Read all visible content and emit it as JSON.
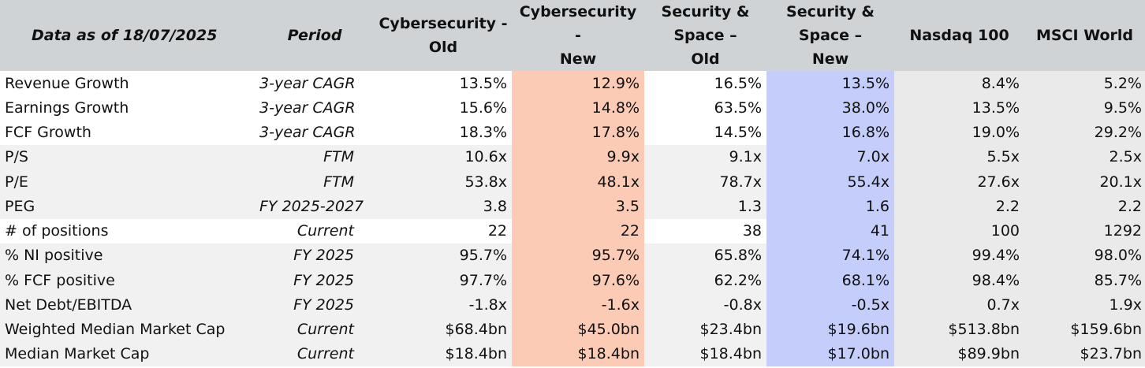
{
  "header": {
    "date_label": "Data as of 18/07/2025",
    "period_label": "Period",
    "cols": [
      {
        "line1": "Cybersecurity -",
        "line2": "Old",
        "line3": ""
      },
      {
        "line1": "Cybersecurity -",
        "line2": "New",
        "line3": ""
      },
      {
        "line1": "Security &",
        "line2": "Space –",
        "line3": "Old"
      },
      {
        "line1": "Security &",
        "line2": "Space –",
        "line3": "New"
      },
      {
        "line1": "Nasdaq 100",
        "line2": "",
        "line3": ""
      },
      {
        "line1": "MSCI World",
        "line2": "",
        "line3": ""
      }
    ]
  },
  "colors": {
    "header_bg": "#d0d3d6",
    "highlight_orange": "#fccbb6",
    "highlight_blue": "#c5cdfb",
    "index_bg": "#eaeaea",
    "shade_bg": "#f1f1f1"
  },
  "rows": [
    {
      "metric": "Revenue Growth",
      "period": "3-year CAGR",
      "values": [
        "13.5%",
        "12.9%",
        "16.5%",
        "13.5%",
        "8.4%",
        "5.2%"
      ]
    },
    {
      "metric": "Earnings Growth",
      "period": "3-year CAGR",
      "values": [
        "15.6%",
        "14.8%",
        "63.5%",
        "38.0%",
        "13.5%",
        "9.5%"
      ]
    },
    {
      "metric": "FCF Growth",
      "period": "3-year CAGR",
      "values": [
        "18.3%",
        "17.8%",
        "14.5%",
        "16.8%",
        "19.0%",
        "29.2%"
      ]
    },
    {
      "metric": "P/S",
      "period": "FTM",
      "values": [
        "10.6x",
        "9.9x",
        "9.1x",
        "7.0x",
        "5.5x",
        "2.5x"
      ]
    },
    {
      "metric": "P/E",
      "period": "FTM",
      "values": [
        "53.8x",
        "48.1x",
        "78.7x",
        "55.4x",
        "27.6x",
        "20.1x"
      ]
    },
    {
      "metric": "PEG",
      "period": "FY 2025-2027",
      "values": [
        "3.8",
        "3.5",
        "1.3",
        "1.6",
        "2.2",
        "2.2"
      ]
    },
    {
      "metric": "# of positions",
      "period": "Current",
      "values": [
        "22",
        "22",
        "38",
        "41",
        "100",
        "1292"
      ]
    },
    {
      "metric": "% NI positive",
      "period": "FY 2025",
      "values": [
        "95.7%",
        "95.7%",
        "65.8%",
        "74.1%",
        "99.4%",
        "98.0%"
      ]
    },
    {
      "metric": "% FCF positive",
      "period": "FY 2025",
      "values": [
        "97.7%",
        "97.6%",
        "62.2%",
        "68.1%",
        "98.4%",
        "85.7%"
      ]
    },
    {
      "metric": "Net Debt/EBITDA",
      "period": "FY 2025",
      "values": [
        "-1.8x",
        "-1.6x",
        "-0.8x",
        "-0.5x",
        "0.7x",
        "1.9x"
      ]
    },
    {
      "metric": "Weighted Median Market Cap",
      "period": "Current",
      "values": [
        "$68.4bn",
        "$45.0bn",
        "$23.4bn",
        "$19.6bn",
        "$513.8bn",
        "$159.6bn"
      ]
    },
    {
      "metric": "Median Market Cap",
      "period": "Current",
      "values": [
        "$18.4bn",
        "$18.4bn",
        "$18.4bn",
        "$17.0bn",
        "$89.9bn",
        "$23.7bn"
      ]
    }
  ]
}
